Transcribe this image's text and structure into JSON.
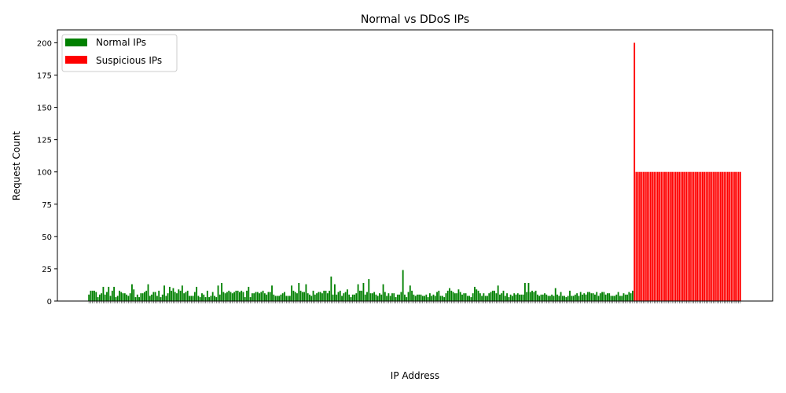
{
  "chart_data": {
    "type": "bar",
    "title": "Normal vs DDoS IPs",
    "xlabel": "IP Address",
    "ylabel": "Request Count",
    "ylim": [
      0,
      210
    ],
    "yticks": [
      0,
      25,
      50,
      75,
      100,
      125,
      150,
      175,
      200
    ],
    "legend": {
      "placement": "top-left"
    },
    "series": [
      {
        "name": "Normal IPs",
        "color": "#008000",
        "values": [
          5,
          8,
          8,
          8,
          7,
          3,
          5,
          6,
          11,
          5,
          7,
          11,
          4,
          8,
          11,
          3,
          4,
          8,
          7,
          6,
          6,
          5,
          4,
          6,
          13,
          9,
          3,
          5,
          3,
          6,
          6,
          7,
          8,
          13,
          4,
          5,
          7,
          7,
          4,
          8,
          3,
          5,
          12,
          4,
          6,
          11,
          8,
          10,
          7,
          6,
          9,
          8,
          12,
          6,
          7,
          8,
          4,
          4,
          4,
          7,
          11,
          4,
          3,
          6,
          5,
          3,
          8,
          3,
          4,
          7,
          4,
          3,
          12,
          5,
          14,
          7,
          6,
          7,
          8,
          7,
          6,
          7,
          8,
          8,
          7,
          8,
          7,
          3,
          8,
          11,
          3,
          6,
          6,
          7,
          7,
          6,
          7,
          8,
          6,
          5,
          7,
          7,
          12,
          5,
          4,
          4,
          4,
          5,
          6,
          7,
          4,
          4,
          4,
          12,
          8,
          7,
          6,
          14,
          8,
          7,
          7,
          13,
          6,
          5,
          4,
          8,
          5,
          6,
          7,
          7,
          6,
          8,
          8,
          6,
          8,
          19,
          5,
          13,
          5,
          7,
          8,
          4,
          6,
          7,
          9,
          5,
          3,
          5,
          5,
          6,
          13,
          8,
          8,
          14,
          5,
          7,
          17,
          6,
          6,
          7,
          5,
          4,
          6,
          5,
          13,
          7,
          4,
          6,
          4,
          6,
          6,
          3,
          5,
          5,
          7,
          24,
          5,
          3,
          7,
          12,
          8,
          5,
          4,
          5,
          5,
          5,
          4,
          4,
          5,
          3,
          6,
          4,
          5,
          4,
          7,
          8,
          4,
          4,
          3,
          6,
          8,
          10,
          8,
          7,
          6,
          6,
          9,
          7,
          5,
          6,
          6,
          4,
          4,
          3,
          6,
          11,
          9,
          8,
          6,
          4,
          6,
          4,
          4,
          6,
          7,
          8,
          8,
          6,
          12,
          5,
          6,
          8,
          4,
          6,
          3,
          5,
          4,
          6,
          5,
          6,
          5,
          5,
          5,
          14,
          7,
          14,
          7,
          8,
          7,
          8,
          5,
          4,
          5,
          5,
          6,
          5,
          4,
          4,
          5,
          4,
          10,
          5,
          4,
          7,
          4,
          4,
          3,
          4,
          8,
          4,
          4,
          5,
          6,
          4,
          7,
          5,
          6,
          5,
          7,
          7,
          6,
          6,
          5,
          7,
          4,
          6,
          7,
          7,
          5,
          6,
          6,
          4,
          4,
          4,
          5,
          7,
          4,
          4,
          6,
          5,
          5,
          7,
          6,
          8
        ]
      },
      {
        "name": "Suspicious IPs",
        "color": "#ff0000",
        "values": [
          200,
          100,
          100,
          100,
          100,
          100,
          100,
          100,
          100,
          100,
          100,
          100,
          100,
          100,
          100,
          100,
          100,
          100,
          100,
          100,
          100,
          100,
          100,
          100,
          100,
          100,
          100,
          100,
          100,
          100,
          100,
          100,
          100,
          100,
          100,
          100,
          100,
          100,
          100,
          100,
          100,
          100,
          100,
          100,
          100,
          100,
          100,
          100,
          100,
          100,
          100,
          100,
          100,
          100,
          100,
          100,
          100,
          100,
          100,
          100
        ]
      }
    ]
  }
}
